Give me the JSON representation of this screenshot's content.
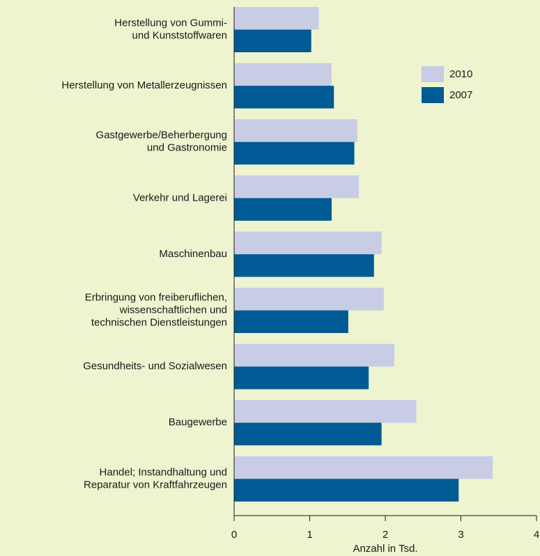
{
  "chart_data": {
    "type": "barh",
    "xlabel": "Anzahl in Tsd.",
    "categories": [
      "Herstellung von Gummi-\nund Kunststoffwaren",
      "Herstellung von Metallerzeugnissen",
      "Gastgewerbe/Beherbergung\nund Gastronomie",
      "Verkehr und Lagerei",
      "Maschinenbau",
      "Erbringung von freiberuflichen,\nwissenschaftlichen und\ntechnischen Dienstleistungen",
      "Gesundheits- und Sozialwesen",
      "Baugewerbe",
      "Handel; Instandhaltung und\nReparatur von Kraftfahrzeugen"
    ],
    "series": [
      {
        "name": "2010",
        "color": "#c9cce5",
        "values": [
          1.12,
          1.29,
          1.63,
          1.65,
          1.95,
          1.98,
          2.12,
          2.41,
          3.42
        ]
      },
      {
        "name": "2007",
        "color": "#005a94",
        "values": [
          1.02,
          1.32,
          1.59,
          1.29,
          1.85,
          1.51,
          1.78,
          1.95,
          2.97
        ]
      }
    ],
    "xlim": [
      0,
      4
    ],
    "xticks": [
      0,
      1,
      2,
      3,
      4
    ],
    "grid": false,
    "legend": "upper right"
  }
}
